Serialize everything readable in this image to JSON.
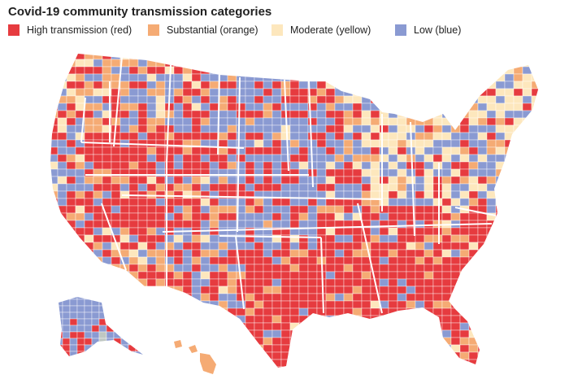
{
  "title": "Covid-19 community transmission categories",
  "legend": [
    {
      "label": "High transmission (red)",
      "color": "#e63b3f"
    },
    {
      "label": "Substantial (orange)",
      "color": "#f5ab74"
    },
    {
      "label": "Moderate (yellow)",
      "color": "#fde7bd"
    },
    {
      "label": "Low (blue)",
      "color": "#8a9ad2"
    }
  ],
  "colors": {
    "high": "#e63b3f",
    "substantial": "#f5ab74",
    "moderate": "#fde7bd",
    "low": "#8a9ad2",
    "no_data": "#bfc7c2",
    "border": "#ffffff"
  }
}
